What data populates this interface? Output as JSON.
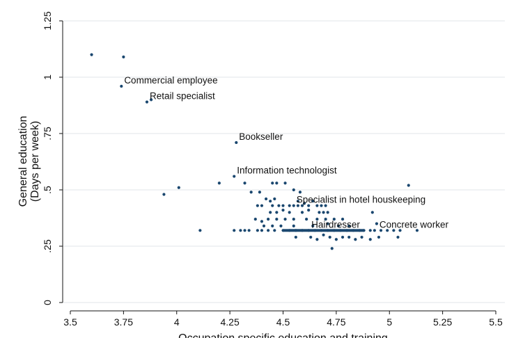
{
  "chart_data": {
    "type": "scatter",
    "title": "",
    "xlabel": "Occupation specific education and training",
    "ylabel_lines": [
      "General education",
      "(Days per week)"
    ],
    "xlim": [
      3.5,
      5.5
    ],
    "ylim": [
      0,
      1.25
    ],
    "xticks": [
      3.5,
      3.75,
      4,
      4.25,
      4.5,
      4.75,
      5,
      5.25,
      5.5
    ],
    "xtick_labels": [
      "3.5",
      "3.75",
      "4",
      "4.25",
      "4.5",
      "4.75",
      "5",
      "5.25",
      "5.5"
    ],
    "yticks": [
      0,
      0.25,
      0.5,
      0.75,
      1,
      1.25
    ],
    "ytick_labels": [
      "0",
      ".25",
      ".5",
      ".75",
      "1",
      "1.25"
    ],
    "grid": "horizontal",
    "legend": "none",
    "marker_color": "#1a476f",
    "points": [
      [
        3.6,
        1.1
      ],
      [
        3.75,
        1.09
      ],
      [
        3.74,
        0.96
      ],
      [
        3.86,
        0.89
      ],
      [
        3.88,
        0.9
      ],
      [
        4.28,
        0.71
      ],
      [
        4.27,
        0.56
      ],
      [
        3.94,
        0.48
      ],
      [
        4.01,
        0.51
      ],
      [
        4.2,
        0.53
      ],
      [
        4.32,
        0.53
      ],
      [
        4.35,
        0.49
      ],
      [
        4.39,
        0.49
      ],
      [
        4.45,
        0.53
      ],
      [
        4.47,
        0.53
      ],
      [
        4.51,
        0.53
      ],
      [
        4.55,
        0.5
      ],
      [
        4.58,
        0.49
      ],
      [
        5.09,
        0.52
      ],
      [
        4.42,
        0.46
      ],
      [
        4.44,
        0.45
      ],
      [
        4.46,
        0.46
      ],
      [
        4.38,
        0.43
      ],
      [
        4.4,
        0.43
      ],
      [
        4.45,
        0.43
      ],
      [
        4.48,
        0.43
      ],
      [
        4.5,
        0.43
      ],
      [
        4.53,
        0.43
      ],
      [
        4.55,
        0.43
      ],
      [
        4.57,
        0.43
      ],
      [
        4.59,
        0.43
      ],
      [
        4.62,
        0.43
      ],
      [
        4.66,
        0.43
      ],
      [
        4.68,
        0.43
      ],
      [
        4.7,
        0.43
      ],
      [
        4.57,
        0.45
      ],
      [
        4.6,
        0.44
      ],
      [
        4.64,
        0.45
      ],
      [
        4.44,
        0.4
      ],
      [
        4.47,
        0.4
      ],
      [
        4.5,
        0.41
      ],
      [
        4.53,
        0.4
      ],
      [
        4.59,
        0.4
      ],
      [
        4.62,
        0.41
      ],
      [
        4.67,
        0.4
      ],
      [
        4.69,
        0.4
      ],
      [
        4.71,
        0.4
      ],
      [
        4.92,
        0.4
      ],
      [
        4.37,
        0.37
      ],
      [
        4.4,
        0.36
      ],
      [
        4.43,
        0.37
      ],
      [
        4.47,
        0.37
      ],
      [
        4.51,
        0.37
      ],
      [
        4.55,
        0.37
      ],
      [
        4.61,
        0.37
      ],
      [
        4.66,
        0.37
      ],
      [
        4.7,
        0.37
      ],
      [
        4.74,
        0.37
      ],
      [
        4.78,
        0.37
      ],
      [
        4.94,
        0.35
      ],
      [
        4.41,
        0.34
      ],
      [
        4.45,
        0.34
      ],
      [
        4.49,
        0.34
      ],
      [
        4.55,
        0.34
      ],
      [
        4.64,
        0.34
      ],
      [
        4.71,
        0.35
      ],
      [
        4.76,
        0.34
      ],
      [
        4.81,
        0.34
      ],
      [
        4.11,
        0.32
      ],
      [
        4.27,
        0.32
      ],
      [
        4.3,
        0.32
      ],
      [
        4.32,
        0.32
      ],
      [
        4.34,
        0.32
      ],
      [
        4.38,
        0.32
      ],
      [
        4.4,
        0.32
      ],
      [
        4.43,
        0.32
      ],
      [
        4.46,
        0.32
      ],
      [
        4.5,
        0.32
      ],
      [
        4.53,
        0.32
      ],
      [
        4.56,
        0.32
      ],
      [
        4.59,
        0.32
      ],
      [
        4.62,
        0.32
      ],
      [
        4.65,
        0.32
      ],
      [
        4.68,
        0.32
      ],
      [
        4.71,
        0.32
      ],
      [
        4.74,
        0.32
      ],
      [
        4.77,
        0.32
      ],
      [
        4.8,
        0.32
      ],
      [
        4.83,
        0.32
      ],
      [
        4.86,
        0.32
      ],
      [
        4.88,
        0.32
      ],
      [
        4.91,
        0.32
      ],
      [
        4.93,
        0.32
      ],
      [
        4.96,
        0.32
      ],
      [
        4.99,
        0.32
      ],
      [
        5.02,
        0.32
      ],
      [
        5.05,
        0.32
      ],
      [
        5.13,
        0.32
      ],
      [
        4.56,
        0.29
      ],
      [
        4.63,
        0.29
      ],
      [
        4.66,
        0.28
      ],
      [
        4.69,
        0.3
      ],
      [
        4.72,
        0.29
      ],
      [
        4.75,
        0.28
      ],
      [
        4.78,
        0.29
      ],
      [
        4.81,
        0.29
      ],
      [
        4.84,
        0.28
      ],
      [
        4.87,
        0.29
      ],
      [
        4.91,
        0.28
      ],
      [
        4.95,
        0.29
      ],
      [
        5.04,
        0.29
      ],
      [
        4.73,
        0.24
      ]
    ],
    "dense_segment": {
      "y": 0.32,
      "x_from": 4.5,
      "x_to": 4.88
    },
    "annotations": [
      {
        "text": "Commercial employee",
        "x": 3.74,
        "y": 0.96
      },
      {
        "text": "Retail specialist",
        "x": 3.86,
        "y": 0.89
      },
      {
        "text": "Bookseller",
        "x": 4.28,
        "y": 0.71
      },
      {
        "text": "Information technologist",
        "x": 4.27,
        "y": 0.56
      },
      {
        "text": "Specialist in hotel houskeeping",
        "x": 4.55,
        "y": 0.43
      },
      {
        "text": "Hairdresser",
        "x": 4.62,
        "y": 0.32
      },
      {
        "text": "Concrete worker",
        "x": 4.94,
        "y": 0.32
      }
    ]
  }
}
